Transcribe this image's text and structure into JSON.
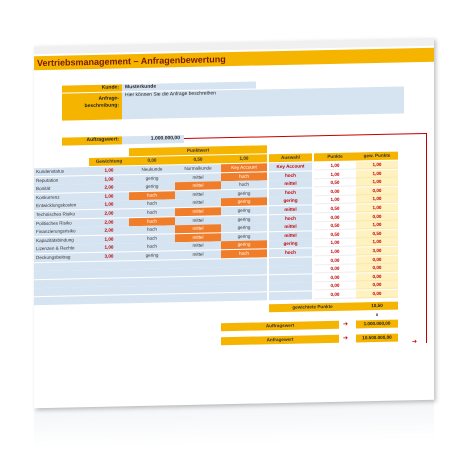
{
  "title": "Vertriebsmanagement – Anfragenbewertung",
  "kunde": {
    "label": "Kunde:",
    "value": "Musterkunde"
  },
  "beschreibung": {
    "label": "Anfrage-\nbeschreibung:",
    "value": "Hier können Sie die Anfrage beschreiben"
  },
  "auftragswert_input": {
    "label": "Auftragswert:",
    "value": "1.000.000,00"
  },
  "table": {
    "punktwert_label": "Punktwert",
    "gewichtung_label": "Gewichtung",
    "auswahl_label": "Auswahl",
    "punkte_label": "Punkte",
    "gew_punkte_label": "gew. Punkte",
    "point_values": [
      "0,00",
      "0,50",
      "1,00"
    ],
    "rows": [
      {
        "name": "Kundenstatus",
        "w": "1,00",
        "opts": [
          "Neukunde",
          "Normalkunde",
          "Key Account"
        ],
        "sel": 2,
        "aus": "Key Account",
        "p": "1,00",
        "gp": "1,00"
      },
      {
        "name": "Reputation",
        "w": "1,00",
        "opts": [
          "gering",
          "mittel",
          "hoch"
        ],
        "sel": 2,
        "aus": "hoch",
        "p": "1,00",
        "gp": "1,00"
      },
      {
        "name": "Bonität",
        "w": "2,00",
        "opts": [
          "gering",
          "mittel",
          "hoch"
        ],
        "sel": 1,
        "aus": "mittel",
        "p": "0,50",
        "gp": "1,00"
      },
      {
        "name": "Konkurrenz",
        "w": "1,00",
        "opts": [
          "hoch",
          "mittel",
          "gering"
        ],
        "sel": 0,
        "aus": "hoch",
        "p": "0,00",
        "gp": "0,00"
      },
      {
        "name": "Entwicklungskosten",
        "w": "1,00",
        "opts": [
          "hoch",
          "mittel",
          "gering"
        ],
        "sel": 2,
        "aus": "gering",
        "p": "1,00",
        "gp": "1,00"
      },
      {
        "name": "Technisches Risiko",
        "w": "2,00",
        "opts": [
          "hoch",
          "mittel",
          "gering"
        ],
        "sel": 1,
        "aus": "mittel",
        "p": "0,50",
        "gp": "1,00"
      },
      {
        "name": "Politisches Risiko",
        "w": "2,00",
        "opts": [
          "hoch",
          "mittel",
          "gering"
        ],
        "sel": 0,
        "aus": "hoch",
        "p": "0,00",
        "gp": "0,00"
      },
      {
        "name": "Finanzierungsrisiko",
        "w": "2,00",
        "opts": [
          "hoch",
          "mittel",
          "gering"
        ],
        "sel": 1,
        "aus": "mittel",
        "p": "0,50",
        "gp": "1,00"
      },
      {
        "name": "Kapazitätsbindung",
        "w": "1,00",
        "opts": [
          "hoch",
          "mittel",
          "gering"
        ],
        "sel": 1,
        "aus": "mittel",
        "p": "0,50",
        "gp": "0,50"
      },
      {
        "name": "Lizenzen & Rechte",
        "w": "1,00",
        "opts": [
          "hoch",
          "mittel",
          "gering"
        ],
        "sel": 2,
        "aus": "gering",
        "p": "1,00",
        "gp": "1,00"
      },
      {
        "name": "Deckungsbeitrag",
        "w": "3,00",
        "opts": [
          "gering",
          "mittel",
          "hoch"
        ],
        "sel": 2,
        "aus": "hoch",
        "p": "1,00",
        "gp": "3,00"
      }
    ],
    "empty_rows": [
      {
        "p": "0,00",
        "gp": "0,00"
      },
      {
        "p": "0,00",
        "gp": "0,00"
      },
      {
        "p": "0,00",
        "gp": "0,00"
      },
      {
        "p": "0,00",
        "gp": "0,00"
      },
      {
        "p": "0,00",
        "gp": "0,00"
      }
    ]
  },
  "summary": {
    "gew_label": "gewichtete Punkte",
    "gew_value": "10,50",
    "times": "x",
    "aw_label": "Auftragswert",
    "aw_value": "1.000.000,00",
    "total_label": "Anfragewert",
    "total_value": "10.500.000,00",
    "arrow": "➔"
  },
  "colors": {
    "orange": "#f4b400",
    "blue": "#d6e4f2",
    "accent": "#f07d2a",
    "red": "#c00000",
    "yellow": "#fff2c0"
  }
}
